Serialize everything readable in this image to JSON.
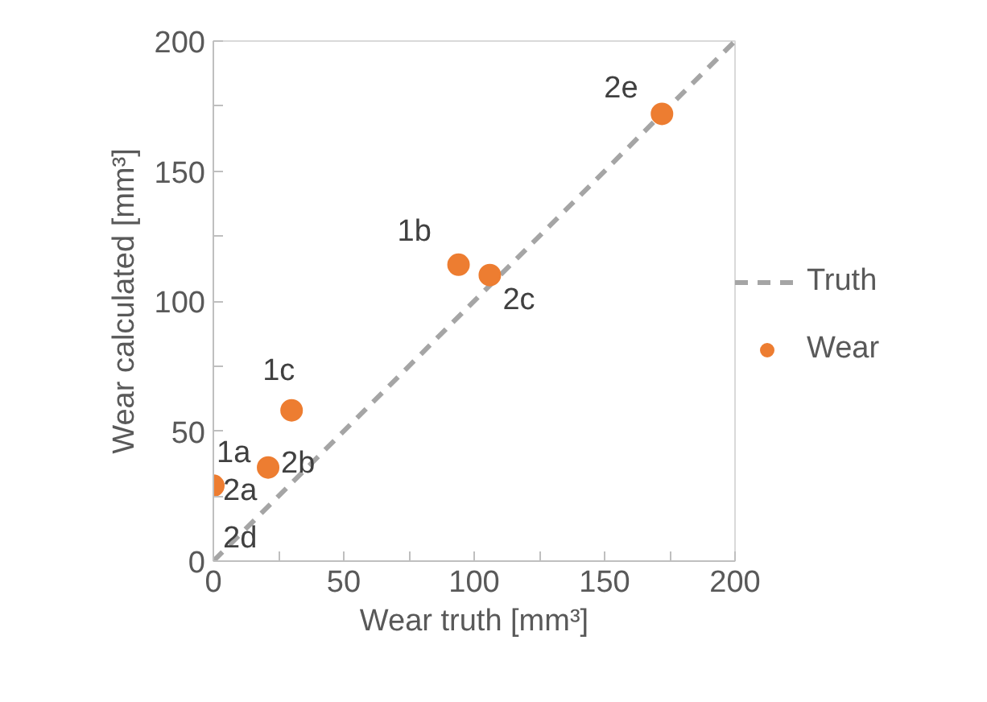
{
  "chart_data": {
    "type": "scatter",
    "xlabel": "Wear truth [mm³]",
    "ylabel": "Wear calculated [mm³]",
    "xlim": [
      0,
      200
    ],
    "ylim": [
      0,
      200
    ],
    "xticks": [
      0,
      {
        "value": 25,
        "label": null
      },
      50,
      {
        "value": 75,
        "label": null
      },
      100,
      {
        "value": 125,
        "label": null
      },
      150,
      {
        "value": 175,
        "label": null
      },
      200
    ],
    "yticks": [
      0,
      {
        "value": 25,
        "label": null
      },
      50,
      {
        "value": 75,
        "label": null
      },
      100,
      {
        "value": 125,
        "label": null
      },
      150,
      {
        "value": 175,
        "label": null
      },
      200
    ],
    "grid": false,
    "legend": "right",
    "series": [
      {
        "name": "Truth",
        "type": "line",
        "line_style": "dashed",
        "color": "#a5a5a5",
        "x": [
          0,
          200
        ],
        "values": [
          0,
          200
        ]
      },
      {
        "name": "Wear",
        "marker": "circle",
        "color": "#ed7d31",
        "x": [
          0,
          94,
          30,
          21,
          106,
          172
        ],
        "values": [
          29,
          114,
          58,
          36,
          110,
          172
        ]
      }
    ],
    "annotations": [
      {
        "text": "1a",
        "x": 0,
        "y": 30
      },
      {
        "text": "1b",
        "x": 94,
        "y": 114
      },
      {
        "text": "1c",
        "x": 30,
        "y": 58
      },
      {
        "text": "2a",
        "x": 0,
        "y": 28
      },
      {
        "text": "2b",
        "x": 21,
        "y": 36
      },
      {
        "text": "2c",
        "x": 106,
        "y": 110
      },
      {
        "text": "2d",
        "x": 0,
        "y": 27
      },
      {
        "text": "2e",
        "x": 172,
        "y": 172
      }
    ]
  }
}
